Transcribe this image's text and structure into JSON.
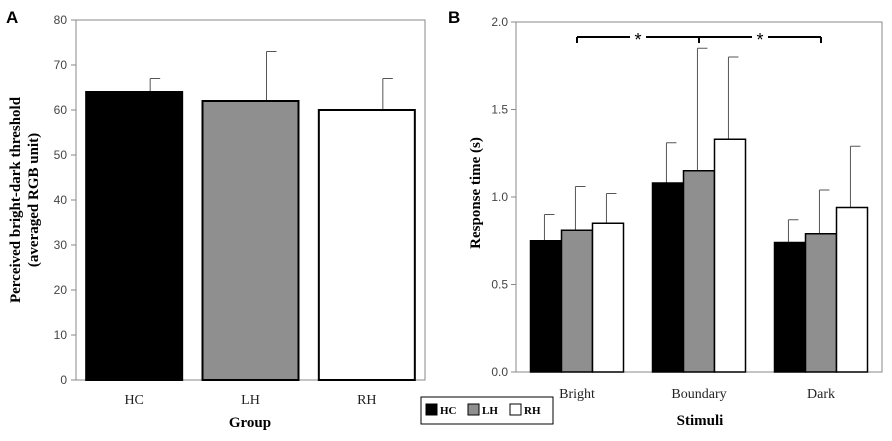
{
  "colors": {
    "HC": "#000000",
    "LH": "#8f8f8f",
    "RH": "#ffffff",
    "outline": "#000000",
    "axis": "#888888"
  },
  "chart_data": [
    {
      "panel": "A",
      "type": "bar",
      "categories": [
        "HC",
        "LH",
        "RH"
      ],
      "values": [
        64,
        62,
        60
      ],
      "errors": [
        3,
        11,
        7
      ],
      "xlabel": "Group",
      "ylabel": [
        "Perceived bright-dark threshold",
        "(averaged RGB unit)"
      ],
      "ylim": [
        0,
        80
      ],
      "yticks": [
        "0",
        "10",
        "20",
        "30",
        "40",
        "50",
        "60",
        "70",
        "80"
      ]
    },
    {
      "panel": "B",
      "type": "bar",
      "categories": [
        "Bright",
        "Boundary",
        "Dark"
      ],
      "series": [
        {
          "name": "HC",
          "values": [
            0.75,
            1.08,
            0.74
          ],
          "errors": [
            0.15,
            0.23,
            0.13
          ]
        },
        {
          "name": "LH",
          "values": [
            0.81,
            1.15,
            0.79
          ],
          "errors": [
            0.25,
            0.7,
            0.25
          ]
        },
        {
          "name": "RH",
          "values": [
            0.85,
            1.33,
            0.94
          ],
          "errors": [
            0.17,
            0.47,
            0.35
          ]
        }
      ],
      "xlabel": "Stimuli",
      "ylabel": "Response time (s)",
      "ylim": [
        0,
        2.0
      ],
      "yticks": [
        "0.0",
        "0.5",
        "1.0",
        "1.5",
        "2.0"
      ],
      "significance": [
        {
          "from": "Bright",
          "to": "Boundary",
          "label": "*"
        },
        {
          "from": "Boundary",
          "to": "Dark",
          "label": "*"
        }
      ],
      "legend": {
        "position": "bottom-left",
        "entries": [
          "HC",
          "LH",
          "RH"
        ]
      }
    }
  ]
}
